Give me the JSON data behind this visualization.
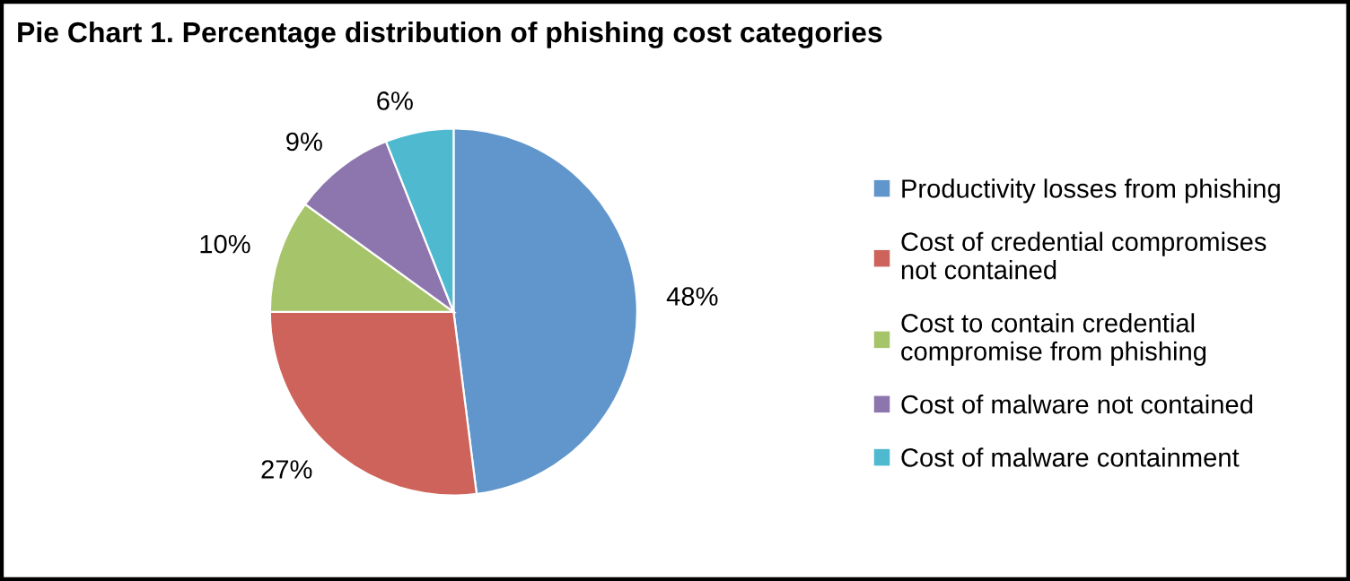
{
  "chart_data": {
    "type": "pie",
    "title": "Pie Chart 1. Percentage distribution of phishing cost categories",
    "categories": [
      "Productivity losses from phishing",
      "Cost of credential compromises\nnot contained",
      "Cost to contain credential\ncompromise from phishing",
      "Cost of malware not contained",
      "Cost of malware containment"
    ],
    "values": [
      48,
      27,
      10,
      9,
      6
    ],
    "colors": [
      "#6096cc",
      "#cd635a",
      "#a6c46a",
      "#8d76ad",
      "#4fb9d0"
    ],
    "value_labels": [
      "48%",
      "27%",
      "10%",
      "9%",
      "6%"
    ],
    "legend": "right"
  }
}
